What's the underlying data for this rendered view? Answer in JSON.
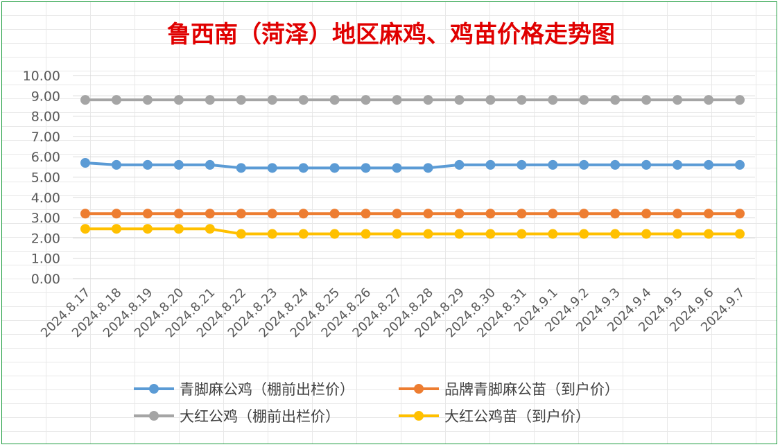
{
  "chart_data": {
    "type": "line",
    "title": "鲁西南（菏泽）地区麻鸡、鸡苗价格走势图",
    "title_color": "#e00000",
    "ylim": [
      0,
      10
    ],
    "ytick_step": 1,
    "ytick_decimals": 2,
    "grid": true,
    "legend_position": "bottom",
    "categories": [
      "2024.8.17",
      "2024.8.18",
      "2024.8.19",
      "2024.8.20",
      "2024.8.21",
      "2024.8.22",
      "2024.8.23",
      "2024.8.24",
      "2024.8.25",
      "2024.8.26",
      "2024.8.27",
      "2024.8.28",
      "2024.8.29",
      "2024.8.30",
      "2024.8.31",
      "2024.9.1",
      "2024.9.2",
      "2024.9.3",
      "2024.9.4",
      "2024.9.5",
      "2024.9.6",
      "2024.9.7"
    ],
    "series": [
      {
        "name": "青脚麻公鸡（棚前出栏价）",
        "color": "#5b9bd5",
        "values": [
          5.7,
          5.6,
          5.6,
          5.6,
          5.6,
          5.45,
          5.45,
          5.45,
          5.45,
          5.45,
          5.45,
          5.45,
          5.6,
          5.6,
          5.6,
          5.6,
          5.6,
          5.6,
          5.6,
          5.6,
          5.6,
          5.6
        ]
      },
      {
        "name": "品牌青脚麻公苗（到户价）",
        "color": "#ed7d31",
        "values": [
          3.2,
          3.2,
          3.2,
          3.2,
          3.2,
          3.2,
          3.2,
          3.2,
          3.2,
          3.2,
          3.2,
          3.2,
          3.2,
          3.2,
          3.2,
          3.2,
          3.2,
          3.2,
          3.2,
          3.2,
          3.2,
          3.2
        ]
      },
      {
        "name": "大红公鸡（棚前出栏价）",
        "color": "#a5a5a5",
        "values": [
          8.8,
          8.8,
          8.8,
          8.8,
          8.8,
          8.8,
          8.8,
          8.8,
          8.8,
          8.8,
          8.8,
          8.8,
          8.8,
          8.8,
          8.8,
          8.8,
          8.8,
          8.8,
          8.8,
          8.8,
          8.8,
          8.8
        ]
      },
      {
        "name": "大红公鸡苗（到户价）",
        "color": "#ffc000",
        "values": [
          2.45,
          2.45,
          2.45,
          2.45,
          2.45,
          2.2,
          2.2,
          2.2,
          2.2,
          2.2,
          2.2,
          2.2,
          2.2,
          2.2,
          2.2,
          2.2,
          2.2,
          2.2,
          2.2,
          2.2,
          2.2,
          2.2
        ]
      }
    ]
  }
}
